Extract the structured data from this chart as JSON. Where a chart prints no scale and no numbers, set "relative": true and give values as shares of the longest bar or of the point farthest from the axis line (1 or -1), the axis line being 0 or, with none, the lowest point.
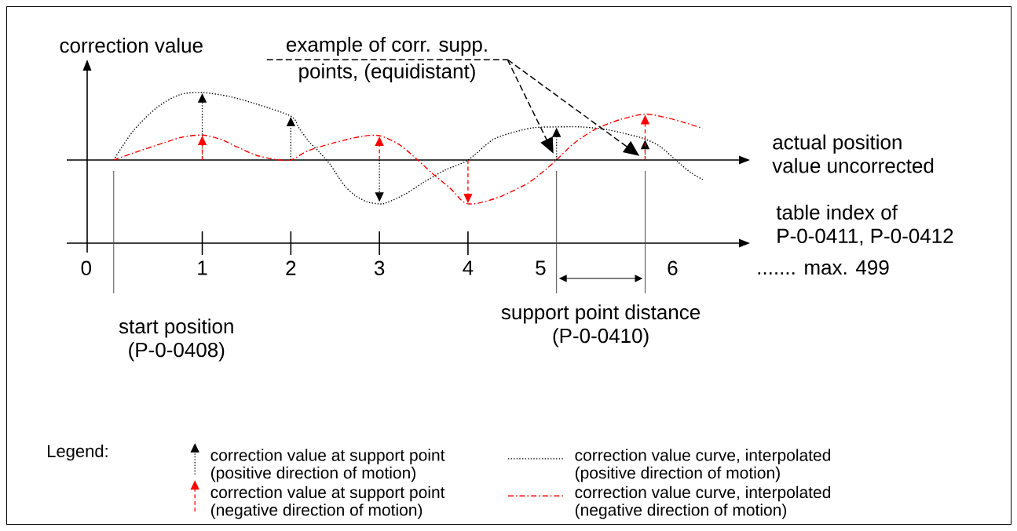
{
  "chart_data": {
    "type": "line",
    "relative": true,
    "ylabel": "correction value",
    "xlabel": "table index of P-0-0411, P-0-0412",
    "x2label": "actual position value uncorrected",
    "xlim": [
      -0.53,
      7.06
    ],
    "xticks": [
      {
        "value": -0.31,
        "label": "0"
      },
      1,
      2,
      3,
      4,
      {
        "value": 4.82,
        "label": "5"
      },
      {
        "value": 6.31,
        "label": "6"
      }
    ],
    "tick_labels": "x",
    "legend": "bottom",
    "legend_title": "Legend:",
    "series": [
      {
        "name": "correction value at support point (positive direction of motion)",
        "type": "lollipop",
        "color": "#000000",
        "line_style": "dotted",
        "x": [
          1,
          2,
          3,
          4,
          5,
          6
        ],
        "values": [
          0.92,
          0.57,
          -0.55,
          null,
          0.41,
          0.23
        ]
      },
      {
        "name": "correction value at support point (negative direction of motion)",
        "type": "lollipop",
        "color": "#ff0000",
        "line_style": "dashed",
        "x": [
          1,
          2,
          3,
          4,
          5,
          6
        ],
        "values": [
          0.29,
          null,
          0.28,
          -0.57,
          null,
          0.6
        ]
      },
      {
        "name": "correction value curve, interpolated (positive direction of motion)",
        "color": "#000000",
        "line_style": "dotted",
        "x": [
          0,
          0.22,
          0.49,
          0.75,
          1,
          1.31,
          1.61,
          2,
          2.09,
          2.2,
          2.32,
          2.44,
          2.53,
          2.62,
          2.73,
          2.86,
          3,
          3.09,
          3.3,
          3.5,
          3.74,
          4,
          4.28,
          4.54,
          4.75,
          5,
          5.28,
          5.57,
          5.87,
          6,
          6.17,
          6.37,
          6.52,
          6.65
        ],
        "values": [
          0,
          0.43,
          0.78,
          0.97,
          1.0,
          0.94,
          0.83,
          0.65,
          0.48,
          0.28,
          0.12,
          -0.06,
          -0.24,
          -0.4,
          -0.53,
          -0.62,
          -0.65,
          -0.63,
          -0.5,
          -0.33,
          -0.15,
          0,
          0.3,
          0.42,
          0.48,
          0.49,
          0.49,
          0.45,
          0.36,
          0.31,
          0.2,
          -0.03,
          -0.19,
          -0.29
        ]
      },
      {
        "name": "correction value curve, interpolated (negative direction of motion)",
        "color": "#ff0000",
        "line_style": "dashdot",
        "x": [
          0,
          0.28,
          0.58,
          0.78,
          1,
          1.2,
          1.4,
          1.61,
          1.82,
          2,
          2.2,
          2.5,
          2.8,
          3,
          3.21,
          3.39,
          3.59,
          3.8,
          3.92,
          4,
          4.15,
          4.39,
          4.68,
          4.86,
          5,
          5.19,
          5.43,
          5.72,
          6,
          6.23,
          6.43,
          6.65
        ],
        "values": [
          0,
          0.13,
          0.26,
          0.34,
          0.37,
          0.31,
          0.19,
          0.07,
          0.01,
          0,
          0.14,
          0.26,
          0.35,
          0.36,
          0.24,
          0.05,
          -0.19,
          -0.42,
          -0.59,
          -0.65,
          -0.63,
          -0.53,
          -0.34,
          -0.16,
          0,
          0.24,
          0.45,
          0.6,
          0.68,
          0.63,
          0.56,
          0.47
        ]
      }
    ],
    "ref_lines": [
      {
        "axis": "x",
        "value": 0,
        "label": "start position (P-0-0408)"
      },
      {
        "axis": "x",
        "value": 5
      },
      {
        "axis": "x",
        "value": 6
      }
    ],
    "annotations": [
      "example of corr. supp. points, (equidistant)",
      "support point distance (P-0-0410)",
      "....... max. 499"
    ]
  }
}
